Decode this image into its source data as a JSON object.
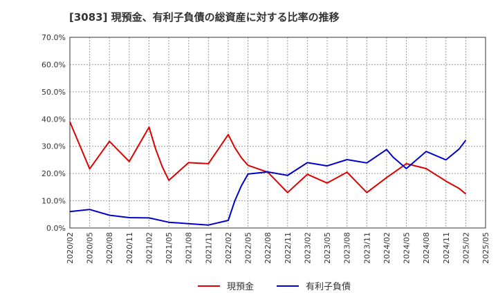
{
  "chart_data": {
    "type": "line",
    "title": "[3083]  現預金、有利子負債の総資産に対する比率の推移",
    "xlabel": "",
    "ylabel": "",
    "ylim": [
      0,
      70
    ],
    "y_ticks": [
      "0.0%",
      "10.0%",
      "20.0%",
      "30.0%",
      "40.0%",
      "50.0%",
      "60.0%",
      "70.0%"
    ],
    "x_ticks": [
      "2020/02",
      "2020/05",
      "2020/08",
      "2020/11",
      "2021/02",
      "2021/05",
      "2021/08",
      "2021/11",
      "2022/02",
      "2022/05",
      "2022/08",
      "2022/11",
      "2023/02",
      "2023/05",
      "2023/08",
      "2023/11",
      "2024/02",
      "2024/05",
      "2024/08",
      "2024/11",
      "2025/02",
      "2025/05"
    ],
    "x_months": [
      "2020/02",
      "2020/03",
      "2020/04",
      "2020/05",
      "2020/06",
      "2020/07",
      "2020/08",
      "2020/09",
      "2020/10",
      "2020/11",
      "2020/12",
      "2021/01",
      "2021/02",
      "2021/03",
      "2021/04",
      "2021/05",
      "2021/06",
      "2021/07",
      "2021/08",
      "2021/09",
      "2021/10",
      "2021/11",
      "2021/12",
      "2022/01",
      "2022/02",
      "2022/03",
      "2022/04",
      "2022/05",
      "2022/06",
      "2022/07",
      "2022/08",
      "2022/09",
      "2022/10",
      "2022/11",
      "2022/12",
      "2023/01",
      "2023/02",
      "2023/03",
      "2023/04",
      "2023/05",
      "2023/06",
      "2023/07",
      "2023/08",
      "2023/09",
      "2023/10",
      "2023/11",
      "2023/12",
      "2024/01",
      "2024/02",
      "2024/03",
      "2024/04",
      "2024/05",
      "2024/06",
      "2024/07",
      "2024/08",
      "2024/09",
      "2024/10",
      "2024/11",
      "2024/12",
      "2025/01",
      "2025/02",
      "2025/03",
      "2025/04",
      "2025/05"
    ],
    "series": [
      {
        "name": "現預金",
        "color": "#dd0000",
        "x": [
          "2020/02",
          "2020/05",
          "2020/08",
          "2020/11",
          "2021/02",
          "2021/03",
          "2021/04",
          "2021/05",
          "2021/08",
          "2021/11",
          "2022/02",
          "2022/03",
          "2022/04",
          "2022/05",
          "2022/08",
          "2022/11",
          "2023/02",
          "2023/05",
          "2023/08",
          "2023/11",
          "2024/02",
          "2024/05",
          "2024/08",
          "2024/11",
          "2025/01",
          "2025/02"
        ],
        "values": [
          39.0,
          21.7,
          31.8,
          24.4,
          37.0,
          29.0,
          22.5,
          17.5,
          24.0,
          23.6,
          34.3,
          29.5,
          25.8,
          23.0,
          20.5,
          13.0,
          19.7,
          16.5,
          20.5,
          13.0,
          18.5,
          23.6,
          21.8,
          17.2,
          14.5,
          12.5
        ]
      },
      {
        "name": "有利子負債",
        "color": "#0000cc",
        "x": [
          "2020/02",
          "2020/05",
          "2020/08",
          "2020/11",
          "2021/02",
          "2021/05",
          "2021/08",
          "2021/11",
          "2022/02",
          "2022/03",
          "2022/04",
          "2022/05",
          "2022/08",
          "2022/11",
          "2023/02",
          "2023/05",
          "2023/08",
          "2023/11",
          "2024/02",
          "2024/03",
          "2024/05",
          "2024/08",
          "2024/11",
          "2025/01",
          "2025/02"
        ],
        "values": [
          6.0,
          6.8,
          4.7,
          3.8,
          3.7,
          2.1,
          1.6,
          1.1,
          2.8,
          10.0,
          15.5,
          19.8,
          20.6,
          19.3,
          24.0,
          22.8,
          25.1,
          23.9,
          28.8,
          26.0,
          21.8,
          28.1,
          25.0,
          29.0,
          32.2
        ]
      }
    ],
    "legend": "bottom-center"
  }
}
